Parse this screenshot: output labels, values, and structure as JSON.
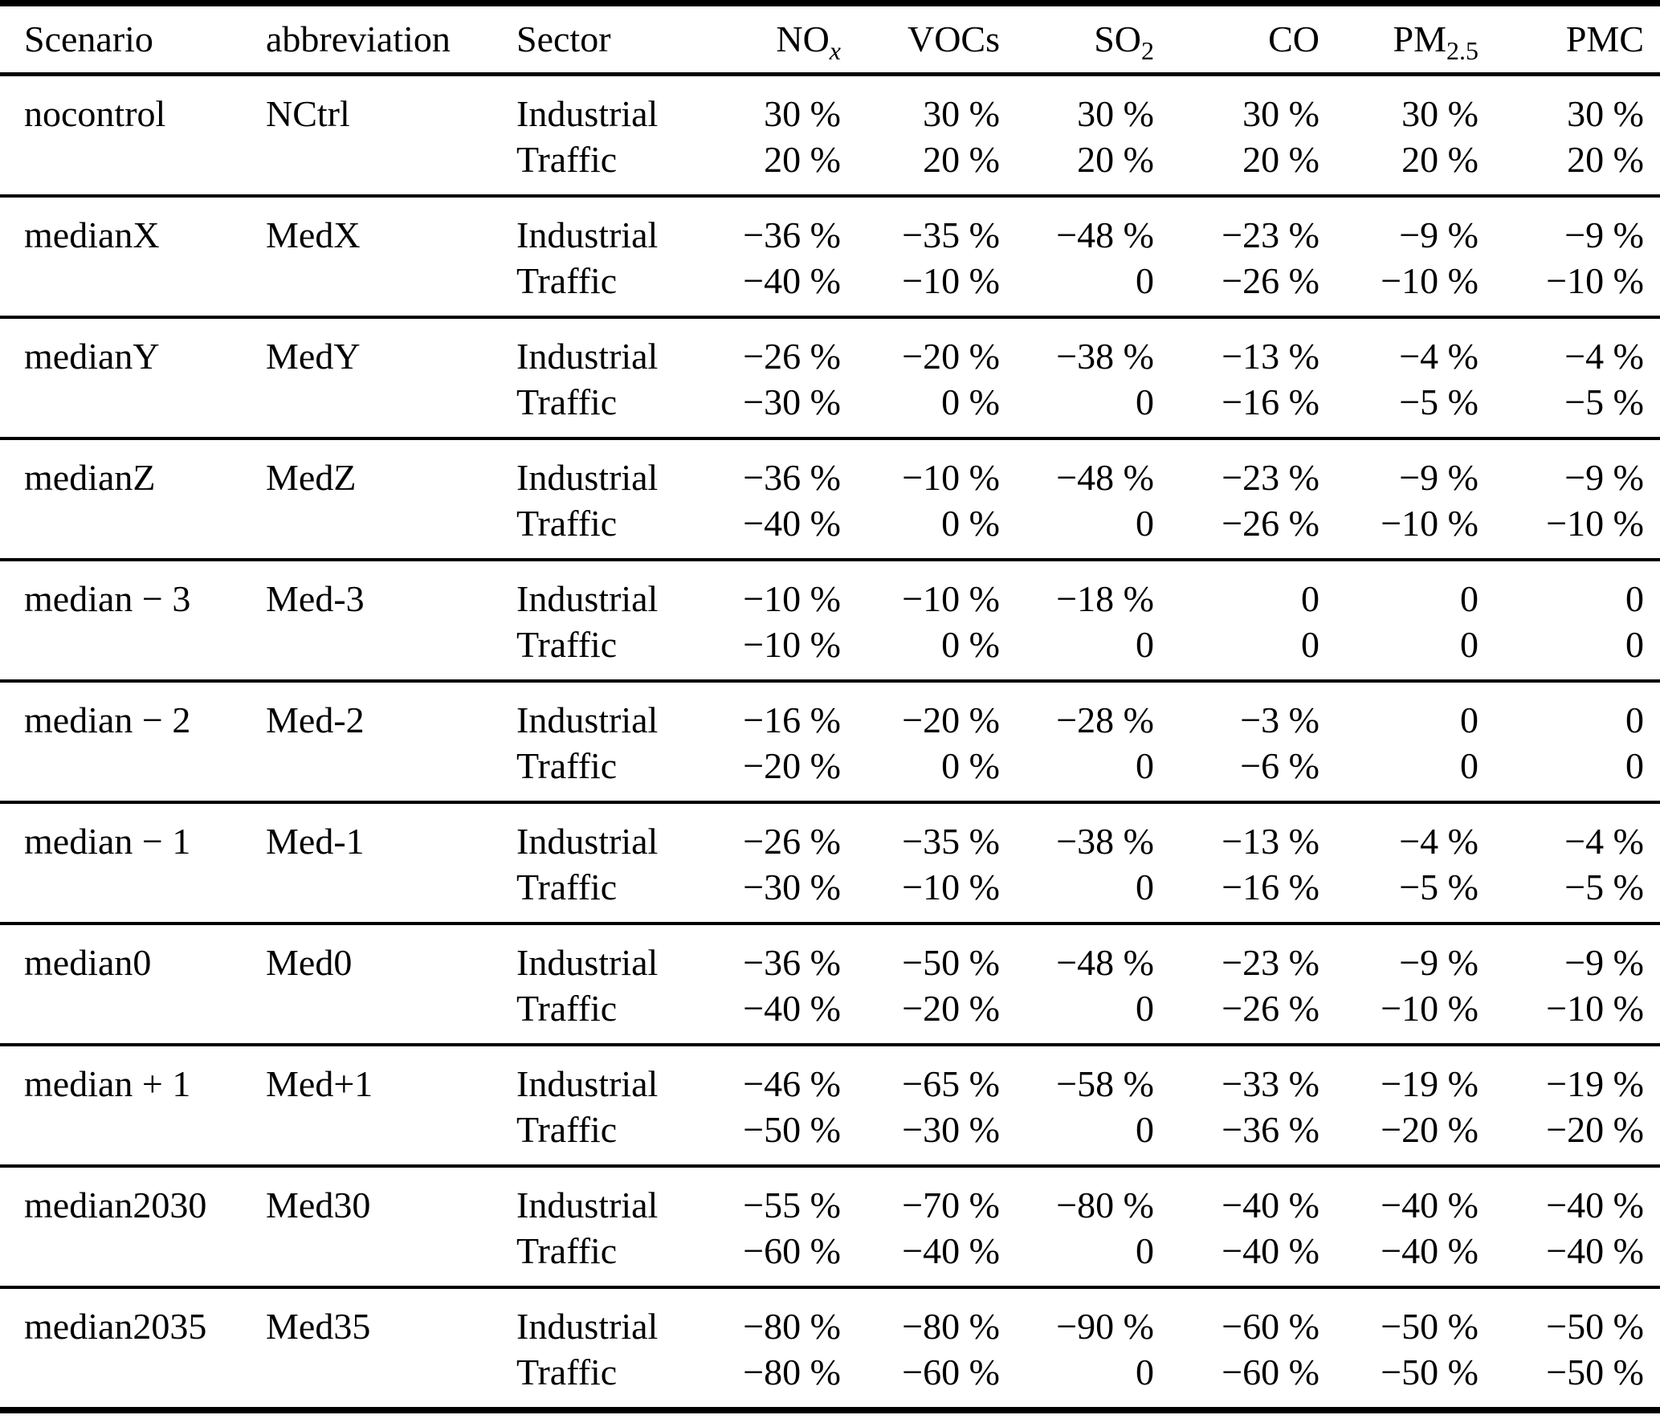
{
  "table": {
    "sector_labels": [
      "Industrial",
      "Traffic"
    ],
    "columns": [
      {
        "key": "scenario",
        "label": "Scenario",
        "align": "left"
      },
      {
        "key": "abbreviation",
        "label": "abbreviation",
        "align": "left"
      },
      {
        "key": "sector",
        "label": "Sector",
        "align": "left"
      },
      {
        "key": "nox",
        "label": "NO",
        "sub": "x",
        "sub_italic": true,
        "align": "right"
      },
      {
        "key": "vocs",
        "label": "VOCs",
        "align": "right"
      },
      {
        "key": "so2",
        "label": "SO",
        "sub": "2",
        "sub_italic": false,
        "align": "right"
      },
      {
        "key": "co",
        "label": "CO",
        "align": "right"
      },
      {
        "key": "pm25",
        "label": "PM",
        "sub": "2.5",
        "sub_italic": false,
        "align": "right"
      },
      {
        "key": "pmc",
        "label": "PMC",
        "align": "right"
      }
    ],
    "rows": [
      {
        "scenario": "nocontrol",
        "abbr": "NCtrl",
        "industrial": [
          "30 %",
          "30 %",
          "30 %",
          "30 %",
          "30 %",
          "30 %"
        ],
        "traffic": [
          "20 %",
          "20 %",
          "20 %",
          "20 %",
          "20 %",
          "20 %"
        ]
      },
      {
        "scenario": "medianX",
        "abbr": "MedX",
        "industrial": [
          "−36 %",
          "−35 %",
          "−48 %",
          "−23 %",
          "−9 %",
          "−9 %"
        ],
        "traffic": [
          "−40 %",
          "−10 %",
          "0",
          "−26 %",
          "−10 %",
          "−10 %"
        ]
      },
      {
        "scenario": "medianY",
        "abbr": "MedY",
        "industrial": [
          "−26 %",
          "−20 %",
          "−38 %",
          "−13 %",
          "−4 %",
          "−4 %"
        ],
        "traffic": [
          "−30 %",
          "0 %",
          "0",
          "−16 %",
          "−5 %",
          "−5 %"
        ]
      },
      {
        "scenario": "medianZ",
        "abbr": "MedZ",
        "industrial": [
          "−36 %",
          "−10 %",
          "−48 %",
          "−23 %",
          "−9 %",
          "−9 %"
        ],
        "traffic": [
          "−40 %",
          "0 %",
          "0",
          "−26 %",
          "−10 %",
          "−10 %"
        ]
      },
      {
        "scenario": "median − 3",
        "abbr": "Med-3",
        "industrial": [
          "−10 %",
          "−10 %",
          "−18 %",
          "0",
          "0",
          "0"
        ],
        "traffic": [
          "−10 %",
          "0 %",
          "0",
          "0",
          "0",
          "0"
        ]
      },
      {
        "scenario": "median − 2",
        "abbr": "Med-2",
        "industrial": [
          "−16 %",
          "−20 %",
          "−28 %",
          "−3 %",
          "0",
          "0"
        ],
        "traffic": [
          "−20 %",
          "0 %",
          "0",
          "−6 %",
          "0",
          "0"
        ]
      },
      {
        "scenario": "median − 1",
        "abbr": "Med-1",
        "industrial": [
          "−26 %",
          "−35 %",
          "−38 %",
          "−13 %",
          "−4 %",
          "−4 %"
        ],
        "traffic": [
          "−30 %",
          "−10 %",
          "0",
          "−16 %",
          "−5 %",
          "−5 %"
        ]
      },
      {
        "scenario": "median0",
        "abbr": "Med0",
        "industrial": [
          "−36 %",
          "−50 %",
          "−48 %",
          "−23 %",
          "−9 %",
          "−9 %"
        ],
        "traffic": [
          "−40 %",
          "−20 %",
          "0",
          "−26 %",
          "−10 %",
          "−10 %"
        ]
      },
      {
        "scenario": "median + 1",
        "abbr": "Med+1",
        "industrial": [
          "−46 %",
          "−65 %",
          "−58 %",
          "−33 %",
          "−19 %",
          "−19 %"
        ],
        "traffic": [
          "−50 %",
          "−30 %",
          "0",
          "−36 %",
          "−20 %",
          "−20 %"
        ]
      },
      {
        "scenario": "median2030",
        "abbr": "Med30",
        "industrial": [
          "−55 %",
          "−70 %",
          "−80 %",
          "−40 %",
          "−40 %",
          "−40 %"
        ],
        "traffic": [
          "−60 %",
          "−40 %",
          "0",
          "−40 %",
          "−40 %",
          "−40 %"
        ]
      },
      {
        "scenario": "median2035",
        "abbr": "Med35",
        "industrial": [
          "−80 %",
          "−80 %",
          "−90 %",
          "−60 %",
          "−50 %",
          "−50 %"
        ],
        "traffic": [
          "−80 %",
          "−60 %",
          "0",
          "−60 %",
          "−50 %",
          "−50 %"
        ]
      }
    ]
  }
}
